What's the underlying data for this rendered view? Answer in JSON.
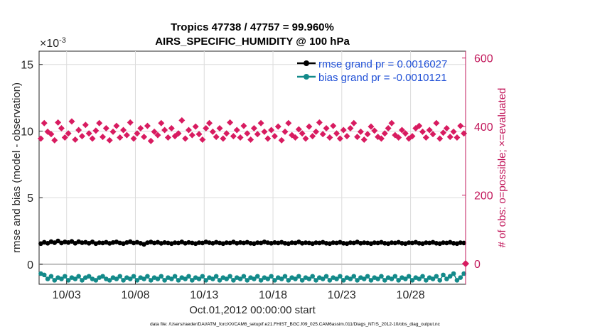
{
  "chart_data": {
    "type": "line",
    "title_line1": "Tropics 47738 / 47757 = 99.960%",
    "title_line2": "AIRS_SPECIFIC_HUMIDITY @ 100 hPa",
    "xlabel": "Oct.01,2012 00:00:00 start",
    "ylabel_left": "rmse and bias (model - observation)",
    "ylabel_right": "# of obs: o=possible; ×=evaluated",
    "exponent_label": "×10",
    "exponent_power": "-3",
    "footer": "data file: /Users/raeder/DAI/ATM_forcXX/CAM6_setup/f.e21.FHIST_BGC.f09_025.CAM6assim.011/Diags_NTrS_2012-10/obs_diag_output.nc",
    "x_range_days": [
      0,
      31
    ],
    "x_ticks": [
      {
        "day": 2,
        "label": "10/03"
      },
      {
        "day": 7,
        "label": "10/08"
      },
      {
        "day": 12,
        "label": "10/13"
      },
      {
        "day": 17,
        "label": "10/18"
      },
      {
        "day": 22,
        "label": "10/23"
      },
      {
        "day": 27,
        "label": "10/28"
      }
    ],
    "y_left_range": [
      -0.0015,
      0.016
    ],
    "y_left_ticks": [
      {
        "value": 0,
        "label": "0"
      },
      {
        "value": 0.005,
        "label": "5"
      },
      {
        "value": 0.01,
        "label": "10"
      },
      {
        "value": 0.015,
        "label": "15"
      }
    ],
    "y_right_range": [
      -60,
      620
    ],
    "y_right_ticks": [
      {
        "value": 0,
        "label": "0"
      },
      {
        "value": 200,
        "label": "200"
      },
      {
        "value": 400,
        "label": "400"
      },
      {
        "value": 600,
        "label": "600"
      }
    ],
    "series": [
      {
        "name": "rmse",
        "legend": "rmse grand pr = 0.0016027",
        "color": "#000000",
        "axis": "left",
        "values": [
          0.00155,
          0.00165,
          0.00158,
          0.0017,
          0.00162,
          0.00175,
          0.0016,
          0.00168,
          0.00163,
          0.00172,
          0.00158,
          0.0017,
          0.00162,
          0.00165,
          0.00158,
          0.00168,
          0.00155,
          0.00162,
          0.0016,
          0.00165,
          0.00157,
          0.00163,
          0.00168,
          0.0016,
          0.00155,
          0.00163,
          0.0017,
          0.0016,
          0.00165,
          0.00158,
          0.0015,
          0.00162,
          0.00167,
          0.0016,
          0.00165,
          0.00157,
          0.00163,
          0.0016,
          0.00155,
          0.00162,
          0.0016,
          0.00168,
          0.00158,
          0.00164,
          0.0016,
          0.00155,
          0.00162,
          0.0016,
          0.00168,
          0.00162,
          0.00158,
          0.00165,
          0.0016,
          0.00155,
          0.00162,
          0.0016,
          0.00167,
          0.00158,
          0.00163,
          0.0016,
          0.00165,
          0.00158,
          0.00155,
          0.00162,
          0.0016,
          0.00168,
          0.00162,
          0.00158,
          0.00163,
          0.0016,
          0.00165,
          0.00158,
          0.00155,
          0.00162,
          0.0016,
          0.00168,
          0.00158,
          0.00162,
          0.0016,
          0.00155,
          0.00162,
          0.0016,
          0.00165,
          0.00158,
          0.00155,
          0.00162,
          0.0016,
          0.00165,
          0.00158,
          0.00155,
          0.00162,
          0.0016,
          0.00167,
          0.00158,
          0.00162,
          0.0016,
          0.00155,
          0.00162,
          0.0016,
          0.00165,
          0.00158,
          0.00155,
          0.00162,
          0.0016,
          0.00165,
          0.00158,
          0.00155,
          0.00162,
          0.0016,
          0.00165,
          0.00158,
          0.00155,
          0.00162,
          0.0016,
          0.00165,
          0.00158,
          0.00155,
          0.00162,
          0.0016,
          0.00165,
          0.00158,
          0.00155,
          0.00162,
          0.0016
        ]
      },
      {
        "name": "bias",
        "legend": "bias grand pr = -0.0010121",
        "color": "#138a8a",
        "axis": "left",
        "values": [
          -0.0007,
          -0.0008,
          -0.0011,
          -0.0009,
          -0.0012,
          -0.001,
          -0.0011,
          -0.0009,
          -0.0012,
          -0.001,
          -0.0011,
          -0.0009,
          -0.0012,
          -0.001,
          -0.0009,
          -0.0011,
          -0.0012,
          -0.001,
          -0.0009,
          -0.0011,
          -0.0012,
          -0.001,
          -0.0011,
          -0.0009,
          -0.0012,
          -0.001,
          -0.0011,
          -0.0009,
          -0.0012,
          -0.001,
          -0.0011,
          -0.0009,
          -0.0012,
          -0.001,
          -0.0011,
          -0.0009,
          -0.0012,
          -0.001,
          -0.0011,
          -0.0009,
          -0.0012,
          -0.001,
          -0.0011,
          -0.0009,
          -0.0012,
          -0.001,
          -0.0011,
          -0.0009,
          -0.0012,
          -0.001,
          -0.0011,
          -0.0009,
          -0.0012,
          -0.001,
          -0.0011,
          -0.0009,
          -0.0012,
          -0.001,
          -0.0011,
          -0.0009,
          -0.0012,
          -0.001,
          -0.0011,
          -0.0009,
          -0.0012,
          -0.001,
          -0.0011,
          -0.0009,
          -0.0012,
          -0.001,
          -0.0011,
          -0.0009,
          -0.0012,
          -0.001,
          -0.0011,
          -0.0009,
          -0.0012,
          -0.001,
          -0.0011,
          -0.0009,
          -0.0012,
          -0.001,
          -0.0011,
          -0.0009,
          -0.0012,
          -0.001,
          -0.0011,
          -0.0009,
          -0.0012,
          -0.001,
          -0.0011,
          -0.0009,
          -0.0012,
          -0.001,
          -0.0011,
          -0.0009,
          -0.0012,
          -0.001,
          -0.0011,
          -0.0009,
          -0.0012,
          -0.001,
          -0.0011,
          -0.0009,
          -0.0012,
          -0.001,
          -0.0011,
          -0.0009,
          -0.0012,
          -0.001,
          -0.0011,
          -0.0009,
          -0.0012,
          -0.001,
          -0.0011,
          -0.0009,
          -0.0012,
          -0.0008,
          -0.0011,
          -0.0009,
          -0.0007,
          -0.0012,
          -0.001,
          -0.0007
        ]
      },
      {
        "name": "obs_count",
        "legend": "",
        "color": "#d81b60",
        "axis": "right",
        "values": [
          365,
          410,
          385,
          378,
          360,
          412,
          395,
          368,
          380,
          415,
          362,
          390,
          372,
          405,
          380,
          365,
          388,
          410,
          370,
          395,
          360,
          385,
          402,
          368,
          390,
          375,
          412,
          365,
          380,
          395,
          370,
          402,
          358,
          385,
          375,
          410,
          390,
          368,
          395,
          372,
          380,
          418,
          365,
          390,
          375,
          400,
          378,
          362,
          395,
          410,
          385,
          370,
          395,
          365,
          380,
          412,
          372,
          390,
          368,
          402,
          380,
          362,
          395,
          378,
          410,
          385,
          365,
          390,
          372,
          400,
          360,
          385,
          410,
          375,
          368,
          392,
          380,
          365,
          400,
          372,
          385,
          412,
          378,
          395,
          368,
          402,
          380,
          365,
          390,
          372,
          395,
          410,
          370,
          385,
          362,
          378,
          400,
          388,
          370,
          365,
          380,
          395,
          410,
          375,
          368,
          390,
          380,
          365,
          372,
          395,
          402,
          385,
          368,
          390,
          378,
          410,
          365,
          382,
          395,
          370,
          385,
          368,
          402,
          380
        ]
      }
    ],
    "zero_line_value": 0,
    "right_axis_marker": 0
  },
  "colors": {
    "right_axis": "#c2185b",
    "legend_text": "#1f4fd6",
    "zero_line": "#bdbdbd"
  }
}
